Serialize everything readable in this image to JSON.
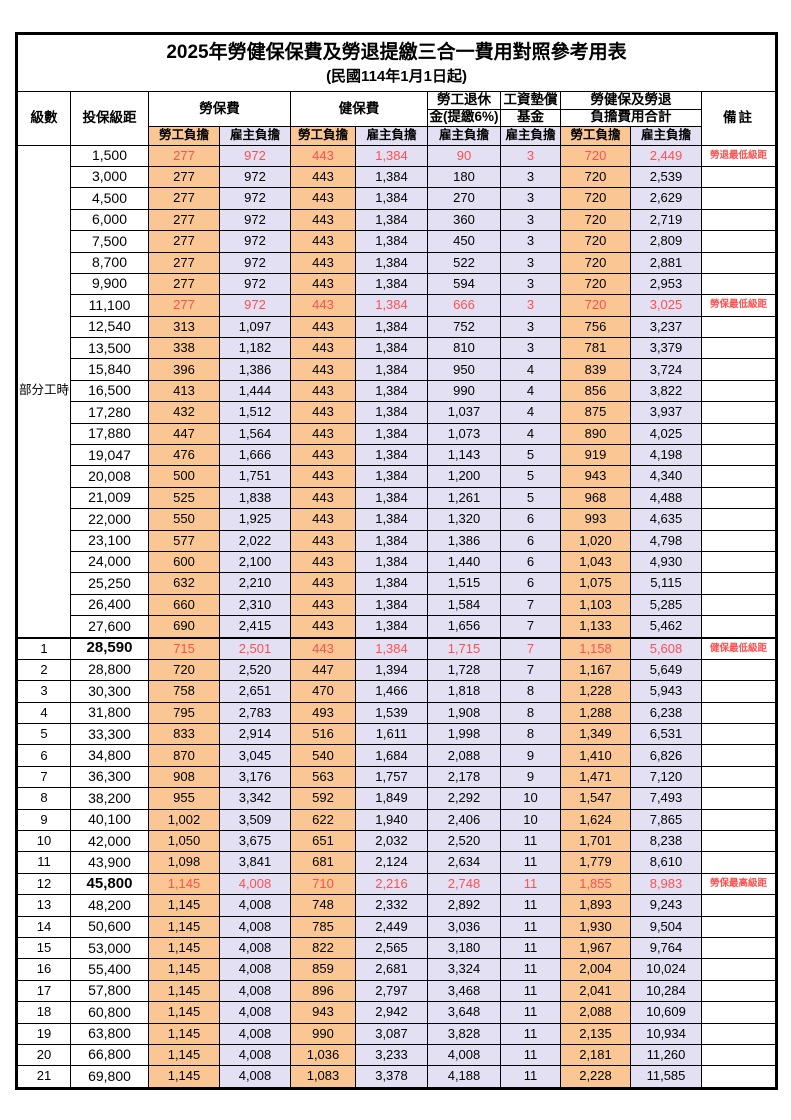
{
  "title": "2025年勞健保保費及勞退提繳三合一費用對照參考用表",
  "subtitle": "(民國114年1月1日起)",
  "colors": {
    "employee_bg": "#FAC794",
    "employer_bg": "#E2E0F2",
    "highlight_text": "#FF5050",
    "border": "#000000"
  },
  "header": {
    "level": "級數",
    "bracket": "投保級距",
    "labor_insurance": "勞保費",
    "health_insurance": "健保費",
    "pension_line1": "勞工退休",
    "pension_line2": "金(提繳6%)",
    "wage_fund_line1": "工資墊償",
    "wage_fund_line2": "基金",
    "total_line1": "勞健保及勞退",
    "total_line2": "負擔費用合計",
    "remark": "備註",
    "employee": "勞工負擔",
    "employer": "雇主負擔"
  },
  "part_time_label": "部分工時",
  "value_column_names": [
    "labor-insurance-employee-cell",
    "labor-insurance-employer-cell",
    "health-insurance-employee-cell",
    "health-insurance-employer-cell",
    "pension-employer-cell",
    "wage-fund-employer-cell",
    "total-employee-cell",
    "total-employer-cell"
  ],
  "value_column_classes": [
    "c-emp",
    "c-er",
    "c-emp",
    "c-er",
    "c-er",
    "c-er",
    "c-emp",
    "c-er"
  ],
  "rows": [
    {
      "level": "",
      "bracket": "1,500",
      "v": [
        "277",
        "972",
        "443",
        "1,384",
        "90",
        "3",
        "720",
        "2,449"
      ],
      "remark": "勞退最低級距",
      "red": true,
      "boldBracket": false
    },
    {
      "level": "",
      "bracket": "3,000",
      "v": [
        "277",
        "972",
        "443",
        "1,384",
        "180",
        "3",
        "720",
        "2,539"
      ],
      "remark": "",
      "red": false,
      "boldBracket": false
    },
    {
      "level": "",
      "bracket": "4,500",
      "v": [
        "277",
        "972",
        "443",
        "1,384",
        "270",
        "3",
        "720",
        "2,629"
      ],
      "remark": "",
      "red": false,
      "boldBracket": false
    },
    {
      "level": "",
      "bracket": "6,000",
      "v": [
        "277",
        "972",
        "443",
        "1,384",
        "360",
        "3",
        "720",
        "2,719"
      ],
      "remark": "",
      "red": false,
      "boldBracket": false
    },
    {
      "level": "",
      "bracket": "7,500",
      "v": [
        "277",
        "972",
        "443",
        "1,384",
        "450",
        "3",
        "720",
        "2,809"
      ],
      "remark": "",
      "red": false,
      "boldBracket": false
    },
    {
      "level": "",
      "bracket": "8,700",
      "v": [
        "277",
        "972",
        "443",
        "1,384",
        "522",
        "3",
        "720",
        "2,881"
      ],
      "remark": "",
      "red": false,
      "boldBracket": false
    },
    {
      "level": "",
      "bracket": "9,900",
      "v": [
        "277",
        "972",
        "443",
        "1,384",
        "594",
        "3",
        "720",
        "2,953"
      ],
      "remark": "",
      "red": false,
      "boldBracket": false
    },
    {
      "level": "",
      "bracket": "11,100",
      "v": [
        "277",
        "972",
        "443",
        "1,384",
        "666",
        "3",
        "720",
        "3,025"
      ],
      "remark": "勞保最低級距",
      "red": true,
      "boldBracket": false
    },
    {
      "level": "",
      "bracket": "12,540",
      "v": [
        "313",
        "1,097",
        "443",
        "1,384",
        "752",
        "3",
        "756",
        "3,237"
      ],
      "remark": "",
      "red": false,
      "boldBracket": false
    },
    {
      "level": "",
      "bracket": "13,500",
      "v": [
        "338",
        "1,182",
        "443",
        "1,384",
        "810",
        "3",
        "781",
        "3,379"
      ],
      "remark": "",
      "red": false,
      "boldBracket": false
    },
    {
      "level": "",
      "bracket": "15,840",
      "v": [
        "396",
        "1,386",
        "443",
        "1,384",
        "950",
        "4",
        "839",
        "3,724"
      ],
      "remark": "",
      "red": false,
      "boldBracket": false
    },
    {
      "level": "",
      "bracket": "16,500",
      "v": [
        "413",
        "1,444",
        "443",
        "1,384",
        "990",
        "4",
        "856",
        "3,822"
      ],
      "remark": "",
      "red": false,
      "boldBracket": false
    },
    {
      "level": "",
      "bracket": "17,280",
      "v": [
        "432",
        "1,512",
        "443",
        "1,384",
        "1,037",
        "4",
        "875",
        "3,937"
      ],
      "remark": "",
      "red": false,
      "boldBracket": false
    },
    {
      "level": "",
      "bracket": "17,880",
      "v": [
        "447",
        "1,564",
        "443",
        "1,384",
        "1,073",
        "4",
        "890",
        "4,025"
      ],
      "remark": "",
      "red": false,
      "boldBracket": false
    },
    {
      "level": "",
      "bracket": "19,047",
      "v": [
        "476",
        "1,666",
        "443",
        "1,384",
        "1,143",
        "5",
        "919",
        "4,198"
      ],
      "remark": "",
      "red": false,
      "boldBracket": false
    },
    {
      "level": "",
      "bracket": "20,008",
      "v": [
        "500",
        "1,751",
        "443",
        "1,384",
        "1,200",
        "5",
        "943",
        "4,340"
      ],
      "remark": "",
      "red": false,
      "boldBracket": false
    },
    {
      "level": "",
      "bracket": "21,009",
      "v": [
        "525",
        "1,838",
        "443",
        "1,384",
        "1,261",
        "5",
        "968",
        "4,488"
      ],
      "remark": "",
      "red": false,
      "boldBracket": false
    },
    {
      "level": "",
      "bracket": "22,000",
      "v": [
        "550",
        "1,925",
        "443",
        "1,384",
        "1,320",
        "6",
        "993",
        "4,635"
      ],
      "remark": "",
      "red": false,
      "boldBracket": false
    },
    {
      "level": "",
      "bracket": "23,100",
      "v": [
        "577",
        "2,022",
        "443",
        "1,384",
        "1,386",
        "6",
        "1,020",
        "4,798"
      ],
      "remark": "",
      "red": false,
      "boldBracket": false
    },
    {
      "level": "",
      "bracket": "24,000",
      "v": [
        "600",
        "2,100",
        "443",
        "1,384",
        "1,440",
        "6",
        "1,043",
        "4,930"
      ],
      "remark": "",
      "red": false,
      "boldBracket": false
    },
    {
      "level": "",
      "bracket": "25,250",
      "v": [
        "632",
        "2,210",
        "443",
        "1,384",
        "1,515",
        "6",
        "1,075",
        "5,115"
      ],
      "remark": "",
      "red": false,
      "boldBracket": false
    },
    {
      "level": "",
      "bracket": "26,400",
      "v": [
        "660",
        "2,310",
        "443",
        "1,384",
        "1,584",
        "7",
        "1,103",
        "5,285"
      ],
      "remark": "",
      "red": false,
      "boldBracket": false
    },
    {
      "level": "",
      "bracket": "27,600",
      "v": [
        "690",
        "2,415",
        "443",
        "1,384",
        "1,656",
        "7",
        "1,133",
        "5,462"
      ],
      "remark": "",
      "red": false,
      "boldBracket": false
    },
    {
      "level": "1",
      "bracket": "28,590",
      "v": [
        "715",
        "2,501",
        "443",
        "1,384",
        "1,715",
        "7",
        "1,158",
        "5,608"
      ],
      "remark": "健保最低級距",
      "red": true,
      "boldBracket": true
    },
    {
      "level": "2",
      "bracket": "28,800",
      "v": [
        "720",
        "2,520",
        "447",
        "1,394",
        "1,728",
        "7",
        "1,167",
        "5,649"
      ],
      "remark": "",
      "red": false,
      "boldBracket": false
    },
    {
      "level": "3",
      "bracket": "30,300",
      "v": [
        "758",
        "2,651",
        "470",
        "1,466",
        "1,818",
        "8",
        "1,228",
        "5,943"
      ],
      "remark": "",
      "red": false,
      "boldBracket": false
    },
    {
      "level": "4",
      "bracket": "31,800",
      "v": [
        "795",
        "2,783",
        "493",
        "1,539",
        "1,908",
        "8",
        "1,288",
        "6,238"
      ],
      "remark": "",
      "red": false,
      "boldBracket": false
    },
    {
      "level": "5",
      "bracket": "33,300",
      "v": [
        "833",
        "2,914",
        "516",
        "1,611",
        "1,998",
        "8",
        "1,349",
        "6,531"
      ],
      "remark": "",
      "red": false,
      "boldBracket": false
    },
    {
      "level": "6",
      "bracket": "34,800",
      "v": [
        "870",
        "3,045",
        "540",
        "1,684",
        "2,088",
        "9",
        "1,410",
        "6,826"
      ],
      "remark": "",
      "red": false,
      "boldBracket": false
    },
    {
      "level": "7",
      "bracket": "36,300",
      "v": [
        "908",
        "3,176",
        "563",
        "1,757",
        "2,178",
        "9",
        "1,471",
        "7,120"
      ],
      "remark": "",
      "red": false,
      "boldBracket": false
    },
    {
      "level": "8",
      "bracket": "38,200",
      "v": [
        "955",
        "3,342",
        "592",
        "1,849",
        "2,292",
        "10",
        "1,547",
        "7,493"
      ],
      "remark": "",
      "red": false,
      "boldBracket": false
    },
    {
      "level": "9",
      "bracket": "40,100",
      "v": [
        "1,002",
        "3,509",
        "622",
        "1,940",
        "2,406",
        "10",
        "1,624",
        "7,865"
      ],
      "remark": "",
      "red": false,
      "boldBracket": false
    },
    {
      "level": "10",
      "bracket": "42,000",
      "v": [
        "1,050",
        "3,675",
        "651",
        "2,032",
        "2,520",
        "11",
        "1,701",
        "8,238"
      ],
      "remark": "",
      "red": false,
      "boldBracket": false
    },
    {
      "level": "11",
      "bracket": "43,900",
      "v": [
        "1,098",
        "3,841",
        "681",
        "2,124",
        "2,634",
        "11",
        "1,779",
        "8,610"
      ],
      "remark": "",
      "red": false,
      "boldBracket": false
    },
    {
      "level": "12",
      "bracket": "45,800",
      "v": [
        "1,145",
        "4,008",
        "710",
        "2,216",
        "2,748",
        "11",
        "1,855",
        "8,983"
      ],
      "remark": "勞保最高級距",
      "red": true,
      "boldBracket": true
    },
    {
      "level": "13",
      "bracket": "48,200",
      "v": [
        "1,145",
        "4,008",
        "748",
        "2,332",
        "2,892",
        "11",
        "1,893",
        "9,243"
      ],
      "remark": "",
      "red": false,
      "boldBracket": false
    },
    {
      "level": "14",
      "bracket": "50,600",
      "v": [
        "1,145",
        "4,008",
        "785",
        "2,449",
        "3,036",
        "11",
        "1,930",
        "9,504"
      ],
      "remark": "",
      "red": false,
      "boldBracket": false
    },
    {
      "level": "15",
      "bracket": "53,000",
      "v": [
        "1,145",
        "4,008",
        "822",
        "2,565",
        "3,180",
        "11",
        "1,967",
        "9,764"
      ],
      "remark": "",
      "red": false,
      "boldBracket": false
    },
    {
      "level": "16",
      "bracket": "55,400",
      "v": [
        "1,145",
        "4,008",
        "859",
        "2,681",
        "3,324",
        "11",
        "2,004",
        "10,024"
      ],
      "remark": "",
      "red": false,
      "boldBracket": false
    },
    {
      "level": "17",
      "bracket": "57,800",
      "v": [
        "1,145",
        "4,008",
        "896",
        "2,797",
        "3,468",
        "11",
        "2,041",
        "10,284"
      ],
      "remark": "",
      "red": false,
      "boldBracket": false
    },
    {
      "level": "18",
      "bracket": "60,800",
      "v": [
        "1,145",
        "4,008",
        "943",
        "2,942",
        "3,648",
        "11",
        "2,088",
        "10,609"
      ],
      "remark": "",
      "red": false,
      "boldBracket": false
    },
    {
      "level": "19",
      "bracket": "63,800",
      "v": [
        "1,145",
        "4,008",
        "990",
        "3,087",
        "3,828",
        "11",
        "2,135",
        "10,934"
      ],
      "remark": "",
      "red": false,
      "boldBracket": false
    },
    {
      "level": "20",
      "bracket": "66,800",
      "v": [
        "1,145",
        "4,008",
        "1,036",
        "3,233",
        "4,008",
        "11",
        "2,181",
        "11,260"
      ],
      "remark": "",
      "red": false,
      "boldBracket": false
    },
    {
      "level": "21",
      "bracket": "69,800",
      "v": [
        "1,145",
        "4,008",
        "1,083",
        "3,378",
        "4,188",
        "11",
        "2,228",
        "11,585"
      ],
      "remark": "",
      "red": false,
      "boldBracket": false
    }
  ]
}
